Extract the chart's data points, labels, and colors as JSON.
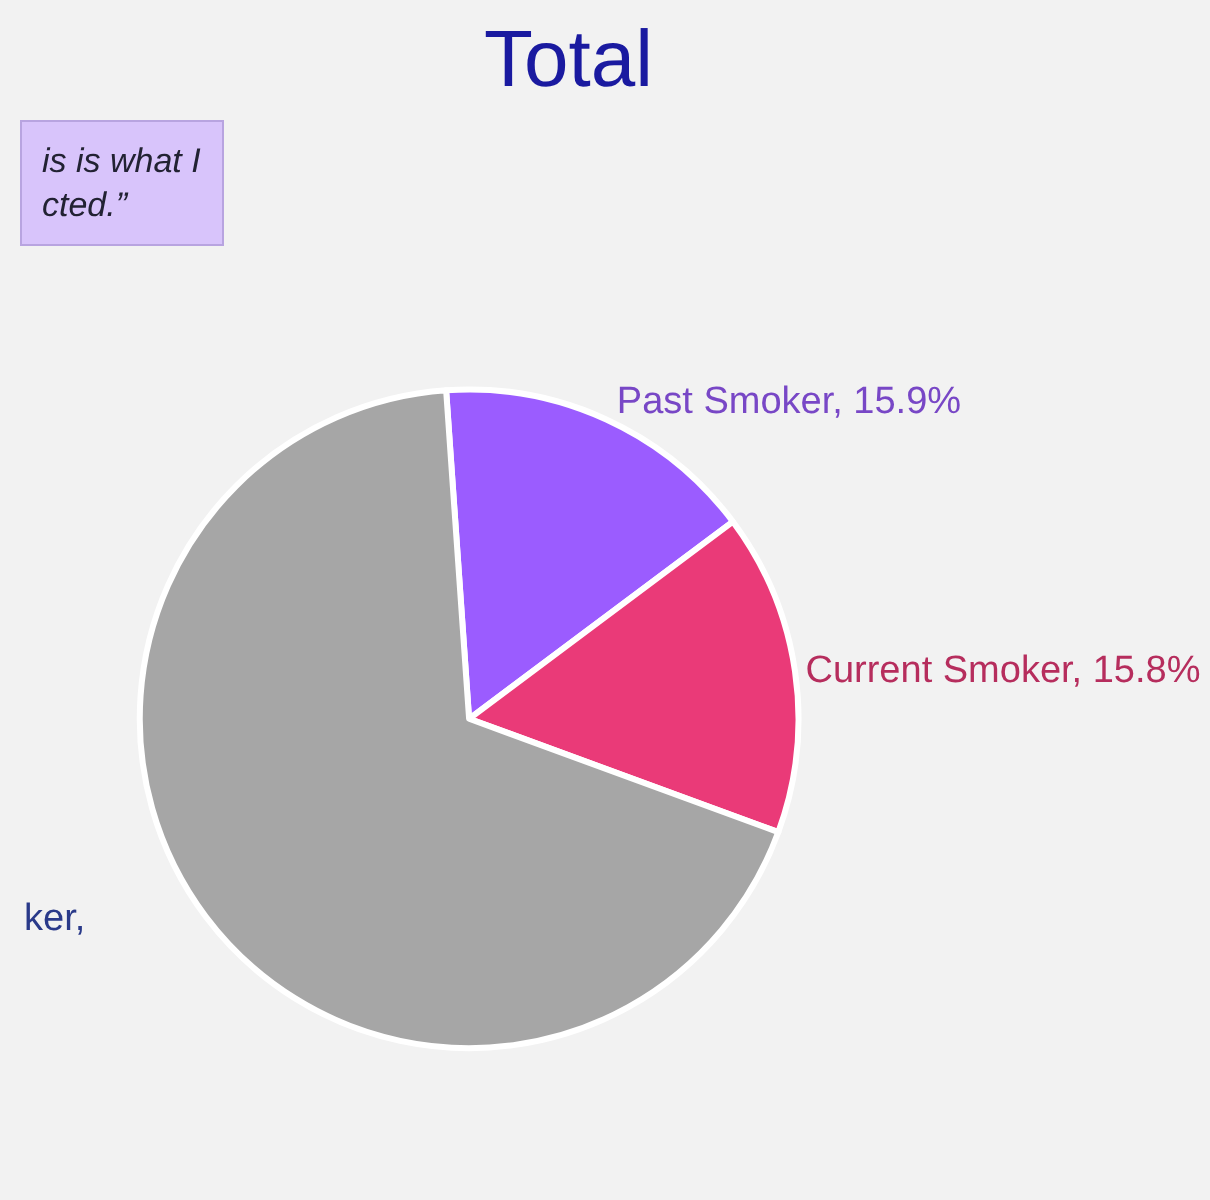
{
  "chart_data": {
    "type": "pie",
    "title": "Total",
    "categories": [
      "Past Smoker",
      "Current Smoker",
      null
    ],
    "values": [
      15.9,
      15.8,
      68.3
    ],
    "value_labels": [
      "15.9%",
      "15.8%",
      null
    ],
    "colors": [
      "#9b5cff",
      "#ea3a78",
      "#a6a6a6"
    ],
    "annotations": [
      "is is what I\ncted.”",
      "ker,"
    ]
  }
}
